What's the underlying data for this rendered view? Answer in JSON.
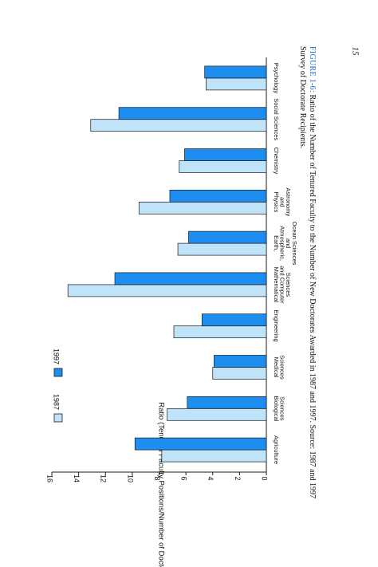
{
  "page_number": "15",
  "caption": {
    "label": "FIGURE 1-6:",
    "text": " Ratio of the Number of Tenured Faculty to the Number of New Doctorates Awarded in 1987 and 1997. Source: 1987 and 1997 Survey of Doctorate Recipients."
  },
  "colors": {
    "series_1987": "#bfe3f8",
    "series_1997": "#1d8ef0",
    "stroke": "#1a1a1a"
  },
  "chart_data": {
    "type": "bar",
    "orientation": "horizontal",
    "categories": [
      [
        "Agriculture"
      ],
      [
        "Biological",
        "Sciences"
      ],
      [
        "Medical",
        "Sciences"
      ],
      [
        "Engineering"
      ],
      [
        "Mathematical",
        "and Computer",
        "Sciences"
      ],
      [
        "Earth,",
        "Atmospheric,",
        "and",
        "Ocean Sciences"
      ],
      [
        "Physics",
        "and",
        "Astronomy"
      ],
      [
        "Chemistry"
      ],
      [
        "Social Sciences"
      ],
      [
        "Psychology"
      ]
    ],
    "series": [
      {
        "name": "1987",
        "values": [
          7.8,
          7.4,
          4.0,
          6.9,
          14.8,
          6.6,
          9.5,
          6.5,
          13.1,
          4.5
        ]
      },
      {
        "name": "1997",
        "values": [
          9.8,
          5.9,
          3.9,
          4.8,
          11.3,
          5.8,
          7.2,
          6.1,
          11.0,
          4.6
        ]
      }
    ],
    "xlabel": "",
    "ylabel": "Ratio (Tenured Faculty Positions/Number of Doctorates)",
    "ylim": [
      0,
      16
    ],
    "ticks": [
      0,
      2,
      4,
      6,
      8,
      10,
      12,
      14,
      16
    ],
    "legend_position": "upper-left",
    "grid": false
  }
}
